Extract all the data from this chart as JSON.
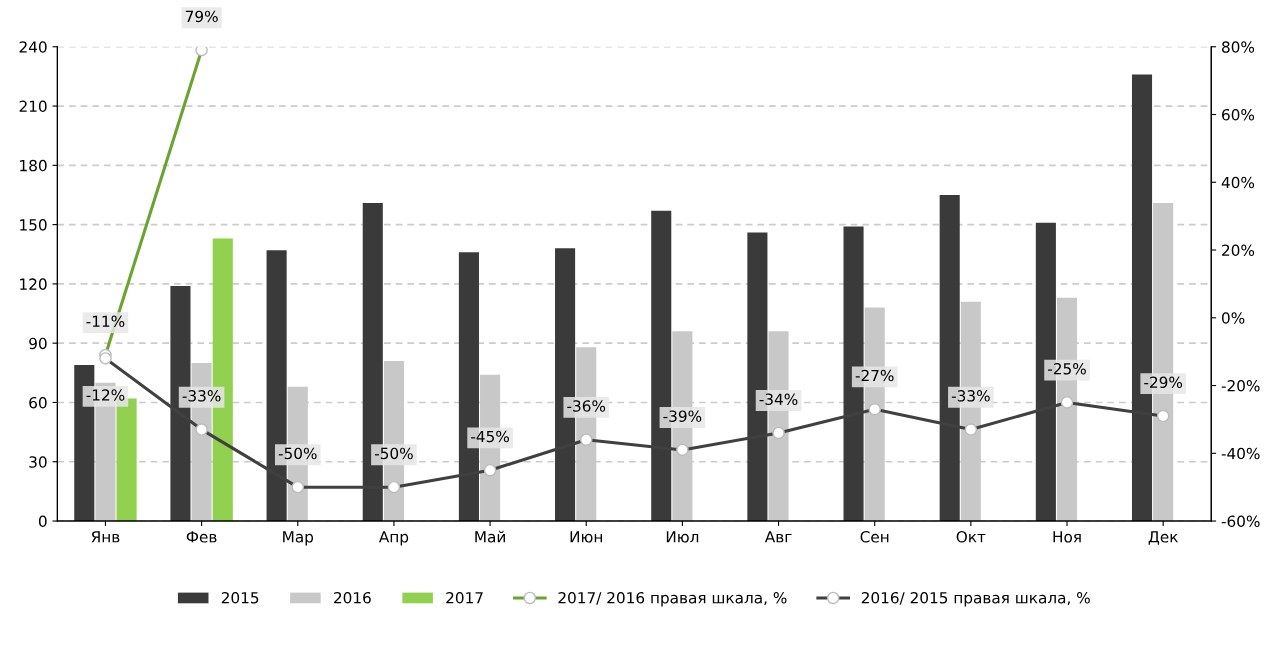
{
  "chart_data": {
    "type": "bar",
    "categories": [
      "Янв",
      "Фев",
      "Мар",
      "Апр",
      "Май",
      "Июн",
      "Июл",
      "Авг",
      "Сен",
      "Окт",
      "Ноя",
      "Дек"
    ],
    "series": [
      {
        "name": "2015",
        "color": "#3a3a3a",
        "values": [
          79,
          119,
          137,
          161,
          136,
          138,
          157,
          146,
          149,
          165,
          151,
          226
        ]
      },
      {
        "name": "2016",
        "color": "#c8c8c8",
        "values": [
          70,
          80,
          68,
          81,
          74,
          88,
          96,
          96,
          108,
          111,
          113,
          161
        ]
      },
      {
        "name": "2017",
        "color": "#92d050",
        "values": [
          62,
          143,
          null,
          null,
          null,
          null,
          null,
          null,
          null,
          null,
          null,
          null
        ]
      },
      {
        "name": "2017/ 2016 правая шкала, %",
        "type": "line",
        "axis": "y2",
        "color": "#6aa32e",
        "values": [
          -11,
          79,
          null,
          null,
          null,
          null,
          null,
          null,
          null,
          null,
          null,
          null
        ],
        "value_labels": [
          "-11%",
          "79%",
          null,
          null,
          null,
          null,
          null,
          null,
          null,
          null,
          null,
          null
        ]
      },
      {
        "name": "2016/ 2015 правая шкала, %",
        "type": "line",
        "axis": "y2",
        "color": "#404040",
        "values": [
          -12,
          -33,
          -50,
          -50,
          -45,
          -36,
          -39,
          -34,
          -27,
          -33,
          -25,
          -29
        ],
        "value_labels": [
          "-12%",
          "-33%",
          "-50%",
          "-50%",
          "-45%",
          "-36%",
          "-39%",
          "-34%",
          "-27%",
          "-33%",
          "-25%",
          "-29%"
        ]
      }
    ],
    "ylim": [
      0,
      240
    ],
    "yticks": [
      0,
      30,
      60,
      90,
      120,
      150,
      180,
      210,
      240
    ],
    "y2lim": [
      -60,
      80
    ],
    "y2ticks": [
      {
        "value": -60,
        "label": "-60%"
      },
      {
        "value": -40,
        "label": "-40%"
      },
      {
        "value": -20,
        "label": "-20%"
      },
      {
        "value": 0,
        "label": "0%"
      },
      {
        "value": 20,
        "label": "20%"
      },
      {
        "value": 40,
        "label": "40%"
      },
      {
        "value": 60,
        "label": "60%"
      },
      {
        "value": 80,
        "label": "80%"
      }
    ],
    "grid": "y",
    "legend": "bottom",
    "marker": "circle"
  }
}
